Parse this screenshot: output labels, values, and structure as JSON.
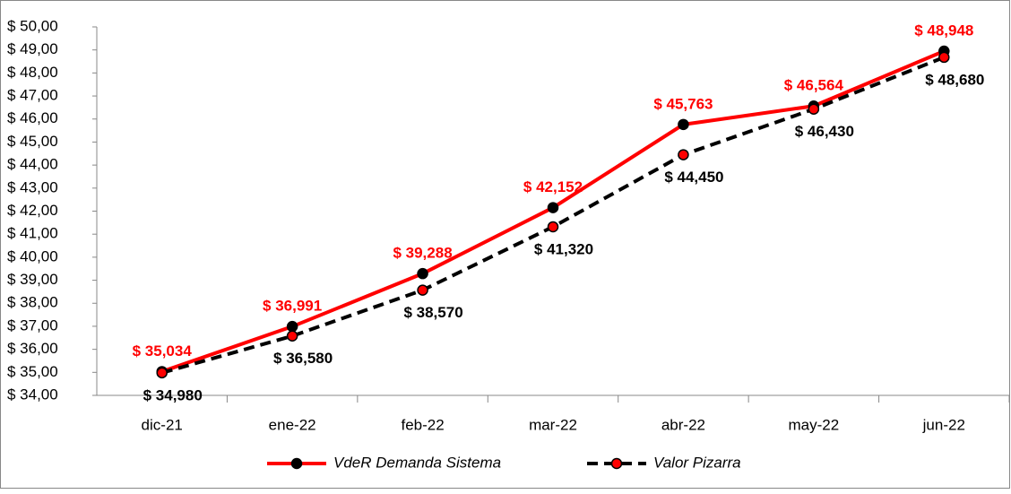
{
  "chart_data": {
    "type": "line",
    "categories": [
      "dic-21",
      "ene-22",
      "feb-22",
      "mar-22",
      "abr-22",
      "may-22",
      "jun-22"
    ],
    "series": [
      {
        "name": "VdeR Demanda Sistema",
        "color": "#ff0000",
        "dash": false,
        "values": [
          35.034,
          36.991,
          39.288,
          42.152,
          45.763,
          46.564,
          48.948
        ],
        "value_labels": [
          "$ 35,034",
          "$ 36,991",
          "$ 39,288",
          "$ 42,152",
          "$ 45,763",
          "$ 46,564",
          "$ 48,948"
        ]
      },
      {
        "name": "Valor Pizarra",
        "color": "#000000",
        "dash": true,
        "values": [
          34.98,
          36.58,
          38.57,
          41.32,
          44.45,
          46.43,
          48.68
        ],
        "value_labels": [
          "$ 34,980",
          "$ 36,580",
          "$ 38,570",
          "$ 41,320",
          "$ 44,450",
          "$ 46,430",
          "$ 48,680"
        ]
      }
    ],
    "ylim": [
      34,
      50
    ],
    "yticks": [
      {
        "value": 34,
        "label": "$ 34,00"
      },
      {
        "value": 35,
        "label": "$ 35,00"
      },
      {
        "value": 36,
        "label": "$ 36,00"
      },
      {
        "value": 37,
        "label": "$ 37,00"
      },
      {
        "value": 38,
        "label": "$ 38,00"
      },
      {
        "value": 39,
        "label": "$ 39,00"
      },
      {
        "value": 40,
        "label": "$ 40,00"
      },
      {
        "value": 41,
        "label": "$ 41,00"
      },
      {
        "value": 42,
        "label": "$ 42,00"
      },
      {
        "value": 43,
        "label": "$ 43,00"
      },
      {
        "value": 44,
        "label": "$ 44,00"
      },
      {
        "value": 45,
        "label": "$ 45,00"
      },
      {
        "value": 46,
        "label": "$ 46,00"
      },
      {
        "value": 47,
        "label": "$ 47,00"
      },
      {
        "value": 48,
        "label": "$ 48,00"
      },
      {
        "value": 49,
        "label": "$ 49,00"
      },
      {
        "value": 50,
        "label": "$ 50,00"
      }
    ],
    "grid": false
  }
}
